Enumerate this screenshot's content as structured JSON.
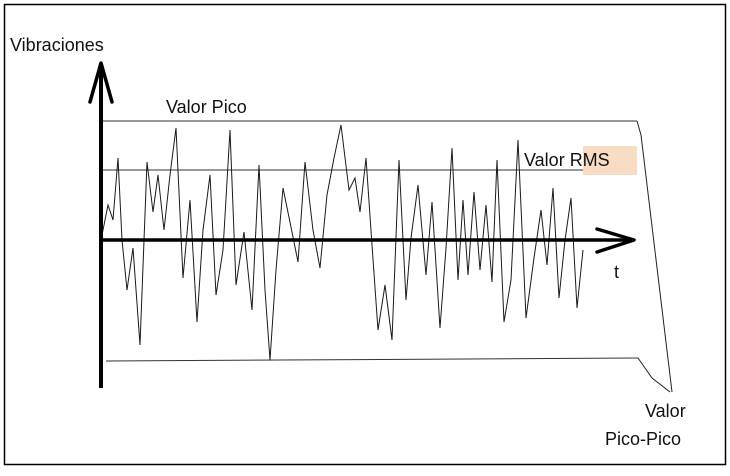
{
  "labels": {
    "y_axis": "Vibraciones",
    "x_axis": "t",
    "peak": "Valor Pico",
    "rms_prefix": "Valor ",
    "rms_highlight": "RMS",
    "peak_to_peak_line1": "Valor",
    "peak_to_peak_line2": "Pico-Pico"
  },
  "colors": {
    "frame": "#000000",
    "axis": "#000000",
    "signal": "#1a1a1a",
    "reference_lines": "#333333",
    "rms_highlight_bg": "#f8dcc4"
  }
}
